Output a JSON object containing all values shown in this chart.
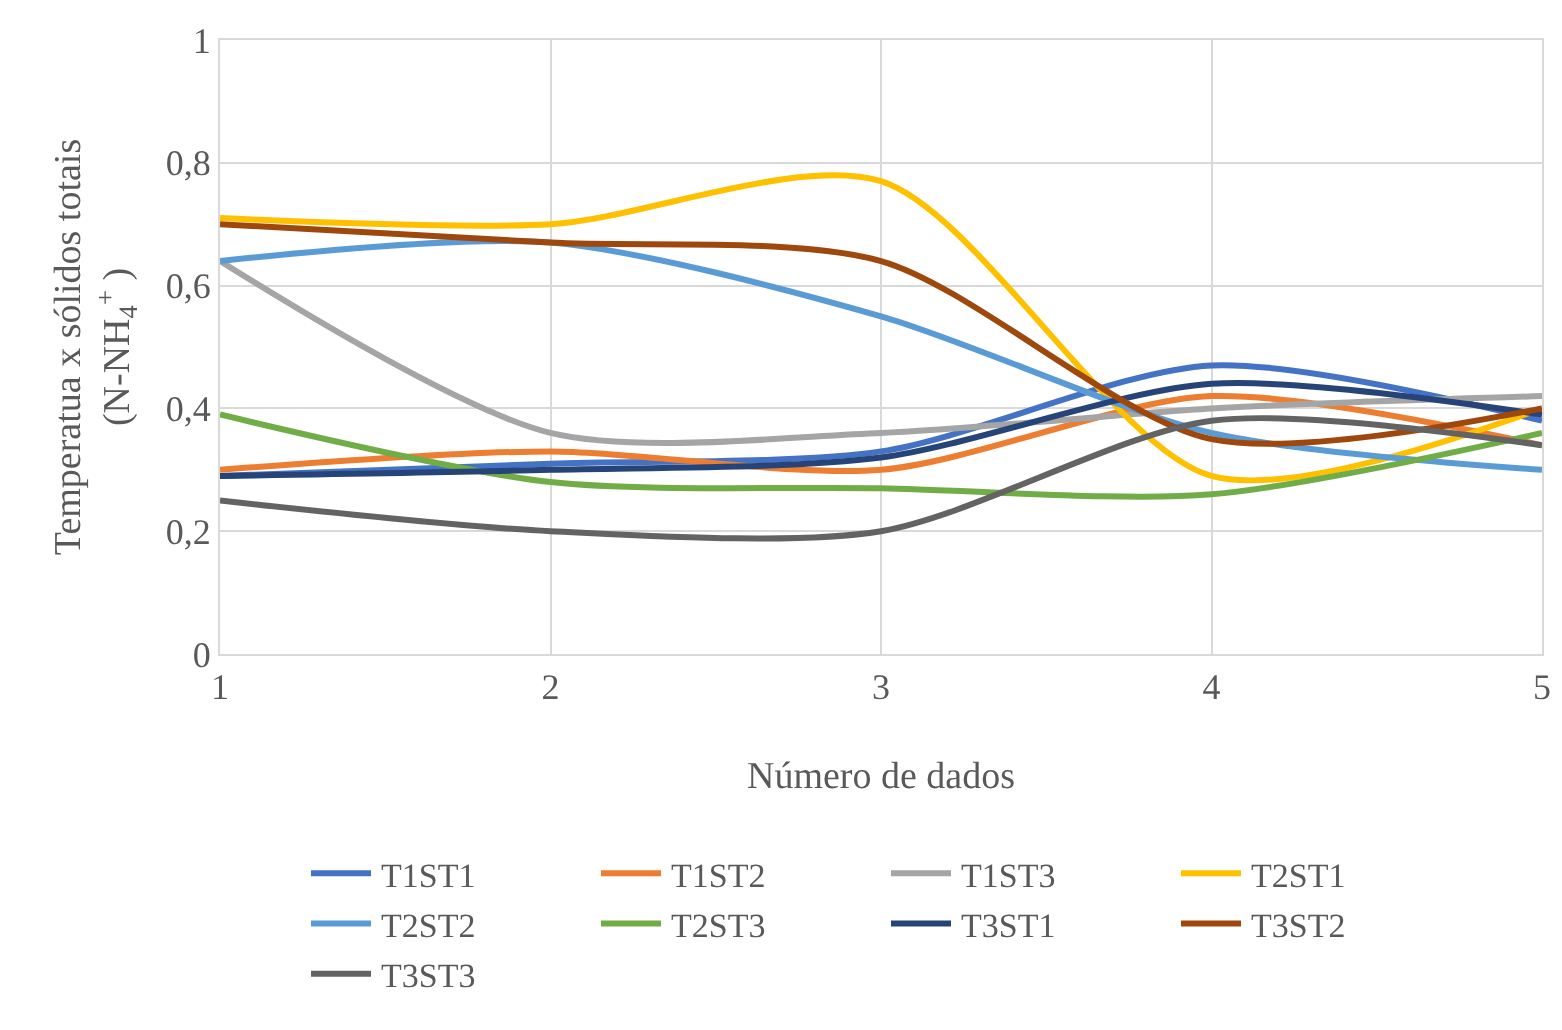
{
  "chart_data": {
    "type": "line",
    "xlabel": "Número de dados",
    "ylabel": "Temperatua x sólidos totais\n(N-NH$_{4}$$^{+}$ )",
    "x": [
      1,
      2,
      3,
      4,
      5
    ],
    "xlim": [
      1,
      5
    ],
    "xticks": [
      1,
      2,
      3,
      4,
      5
    ],
    "ylim": [
      0,
      1
    ],
    "yticks": [
      0,
      {
        "value": 0.2,
        "label": "0,2"
      },
      {
        "value": 0.4,
        "label": "0,4"
      },
      {
        "value": 0.6,
        "label": "0,6"
      },
      {
        "value": 0.8,
        "label": "0,8"
      },
      1
    ],
    "grid": true,
    "legend": "bottom",
    "line_style": "solid",
    "marker": "none",
    "series": [
      {
        "name": "T1ST1",
        "color": "#4472c4",
        "values": [
          0.29,
          0.31,
          0.33,
          0.47,
          0.38
        ]
      },
      {
        "name": "T1ST2",
        "color": "#ed7d31",
        "values": [
          0.3,
          0.33,
          0.3,
          0.42,
          0.34
        ]
      },
      {
        "name": "T1ST3",
        "color": "#a5a5a5",
        "values": [
          0.64,
          0.36,
          0.36,
          0.4,
          0.42
        ]
      },
      {
        "name": "T2ST1",
        "color": "#ffc000",
        "values": [
          0.71,
          0.7,
          0.77,
          0.29,
          0.4
        ]
      },
      {
        "name": "T2ST2",
        "color": "#5b9bd5",
        "values": [
          0.64,
          0.67,
          0.55,
          0.36,
          0.3
        ]
      },
      {
        "name": "T2ST3",
        "color": "#70ad47",
        "values": [
          0.39,
          0.28,
          0.27,
          0.26,
          0.36
        ]
      },
      {
        "name": "T3ST1",
        "color": "#264478",
        "values": [
          0.29,
          0.3,
          0.32,
          0.44,
          0.39
        ]
      },
      {
        "name": "T3ST2",
        "color": "#9e480e",
        "values": [
          0.7,
          0.67,
          0.64,
          0.35,
          0.4
        ]
      },
      {
        "name": "T3ST3",
        "color": "#636363",
        "values": [
          0.25,
          0.2,
          0.2,
          0.38,
          0.34
        ]
      }
    ]
  }
}
